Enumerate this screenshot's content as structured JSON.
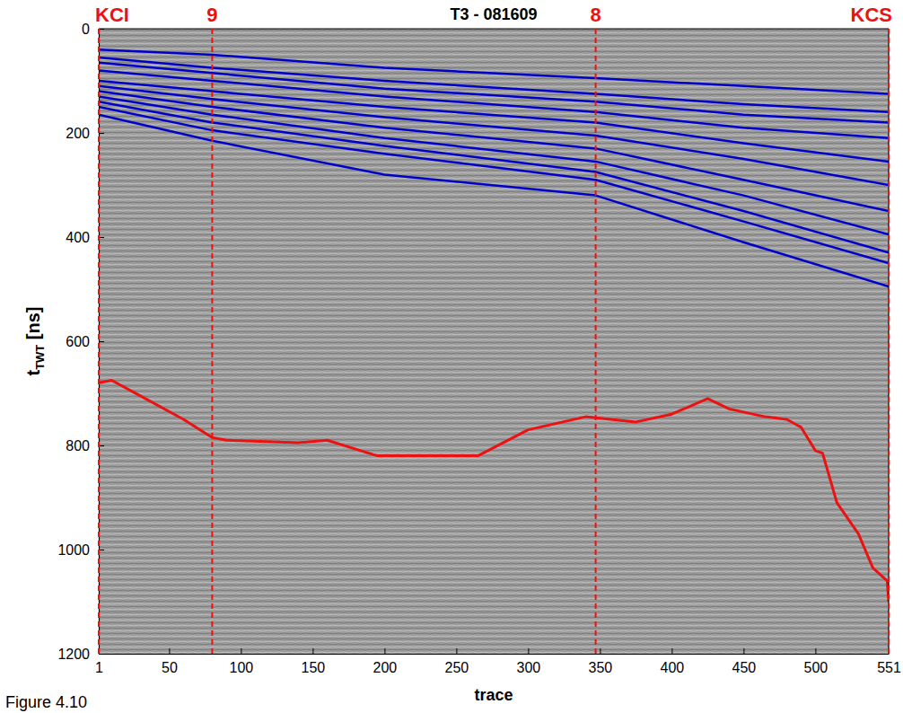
{
  "chart_data": {
    "type": "line",
    "title": "T3 - 081609",
    "xlabel": "trace",
    "ylabel": [
      "t",
      "TWT",
      " [ns]"
    ],
    "caption": "Figure 4.10",
    "xlim": [
      1,
      551
    ],
    "xticks": [
      1,
      50,
      100,
      150,
      200,
      250,
      300,
      350,
      400,
      450,
      500,
      551
    ],
    "ylim": [
      0,
      1200
    ],
    "yticks": [
      0,
      200,
      400,
      600,
      800,
      1000,
      1200
    ],
    "annotations": [
      {
        "x": 1,
        "label": "KCI"
      },
      {
        "x": 80,
        "label": "9"
      },
      {
        "x": 347,
        "label": "8"
      },
      {
        "x": 551,
        "label": "KCS"
      }
    ],
    "series": [
      {
        "color": "#0000cc",
        "x": [
          1,
          80,
          200,
          347,
          450,
          551
        ],
        "values": [
          40,
          50,
          75,
          95,
          110,
          125
        ]
      },
      {
        "color": "#0000cc",
        "x": [
          1,
          80,
          200,
          347,
          450,
          551
        ],
        "values": [
          55,
          75,
          100,
          125,
          145,
          160
        ]
      },
      {
        "color": "#0000cc",
        "x": [
          1,
          80,
          200,
          347,
          450,
          551
        ],
        "values": [
          65,
          85,
          115,
          140,
          165,
          180
        ]
      },
      {
        "color": "#0000cc",
        "x": [
          1,
          80,
          200,
          347,
          450,
          551
        ],
        "values": [
          80,
          100,
          130,
          160,
          190,
          210
        ]
      },
      {
        "color": "#0000cc",
        "x": [
          1,
          80,
          200,
          347,
          450,
          551
        ],
        "values": [
          100,
          120,
          150,
          180,
          220,
          255
        ]
      },
      {
        "color": "#0000cc",
        "x": [
          1,
          80,
          200,
          347,
          450,
          551
        ],
        "values": [
          110,
          135,
          170,
          205,
          250,
          300
        ]
      },
      {
        "color": "#0000cc",
        "x": [
          1,
          80,
          200,
          347,
          450,
          551
        ],
        "values": [
          120,
          150,
          190,
          230,
          290,
          350
        ]
      },
      {
        "color": "#0000cc",
        "x": [
          1,
          80,
          200,
          347,
          450,
          551
        ],
        "values": [
          130,
          165,
          210,
          255,
          320,
          395
        ]
      },
      {
        "color": "#0000cc",
        "x": [
          1,
          80,
          200,
          347,
          450,
          551
        ],
        "values": [
          140,
          180,
          225,
          275,
          350,
          430
        ]
      },
      {
        "color": "#0000cc",
        "x": [
          1,
          80,
          200,
          347,
          450,
          551
        ],
        "values": [
          150,
          195,
          240,
          290,
          370,
          450
        ]
      },
      {
        "color": "#0000cc",
        "x": [
          1,
          80,
          200,
          347,
          450,
          551
        ],
        "values": [
          165,
          215,
          280,
          320,
          410,
          495
        ]
      },
      {
        "color": "#ee1111",
        "x": [
          1,
          10,
          30,
          60,
          80,
          90,
          140,
          160,
          195,
          265,
          300,
          340,
          375,
          400,
          425,
          440,
          465,
          480,
          490,
          500,
          505,
          515,
          530,
          540,
          550,
          551
        ],
        "values": [
          680,
          675,
          705,
          750,
          785,
          790,
          795,
          790,
          820,
          820,
          770,
          745,
          755,
          740,
          710,
          730,
          745,
          750,
          765,
          810,
          815,
          910,
          970,
          1035,
          1060,
          1100
        ]
      }
    ]
  }
}
